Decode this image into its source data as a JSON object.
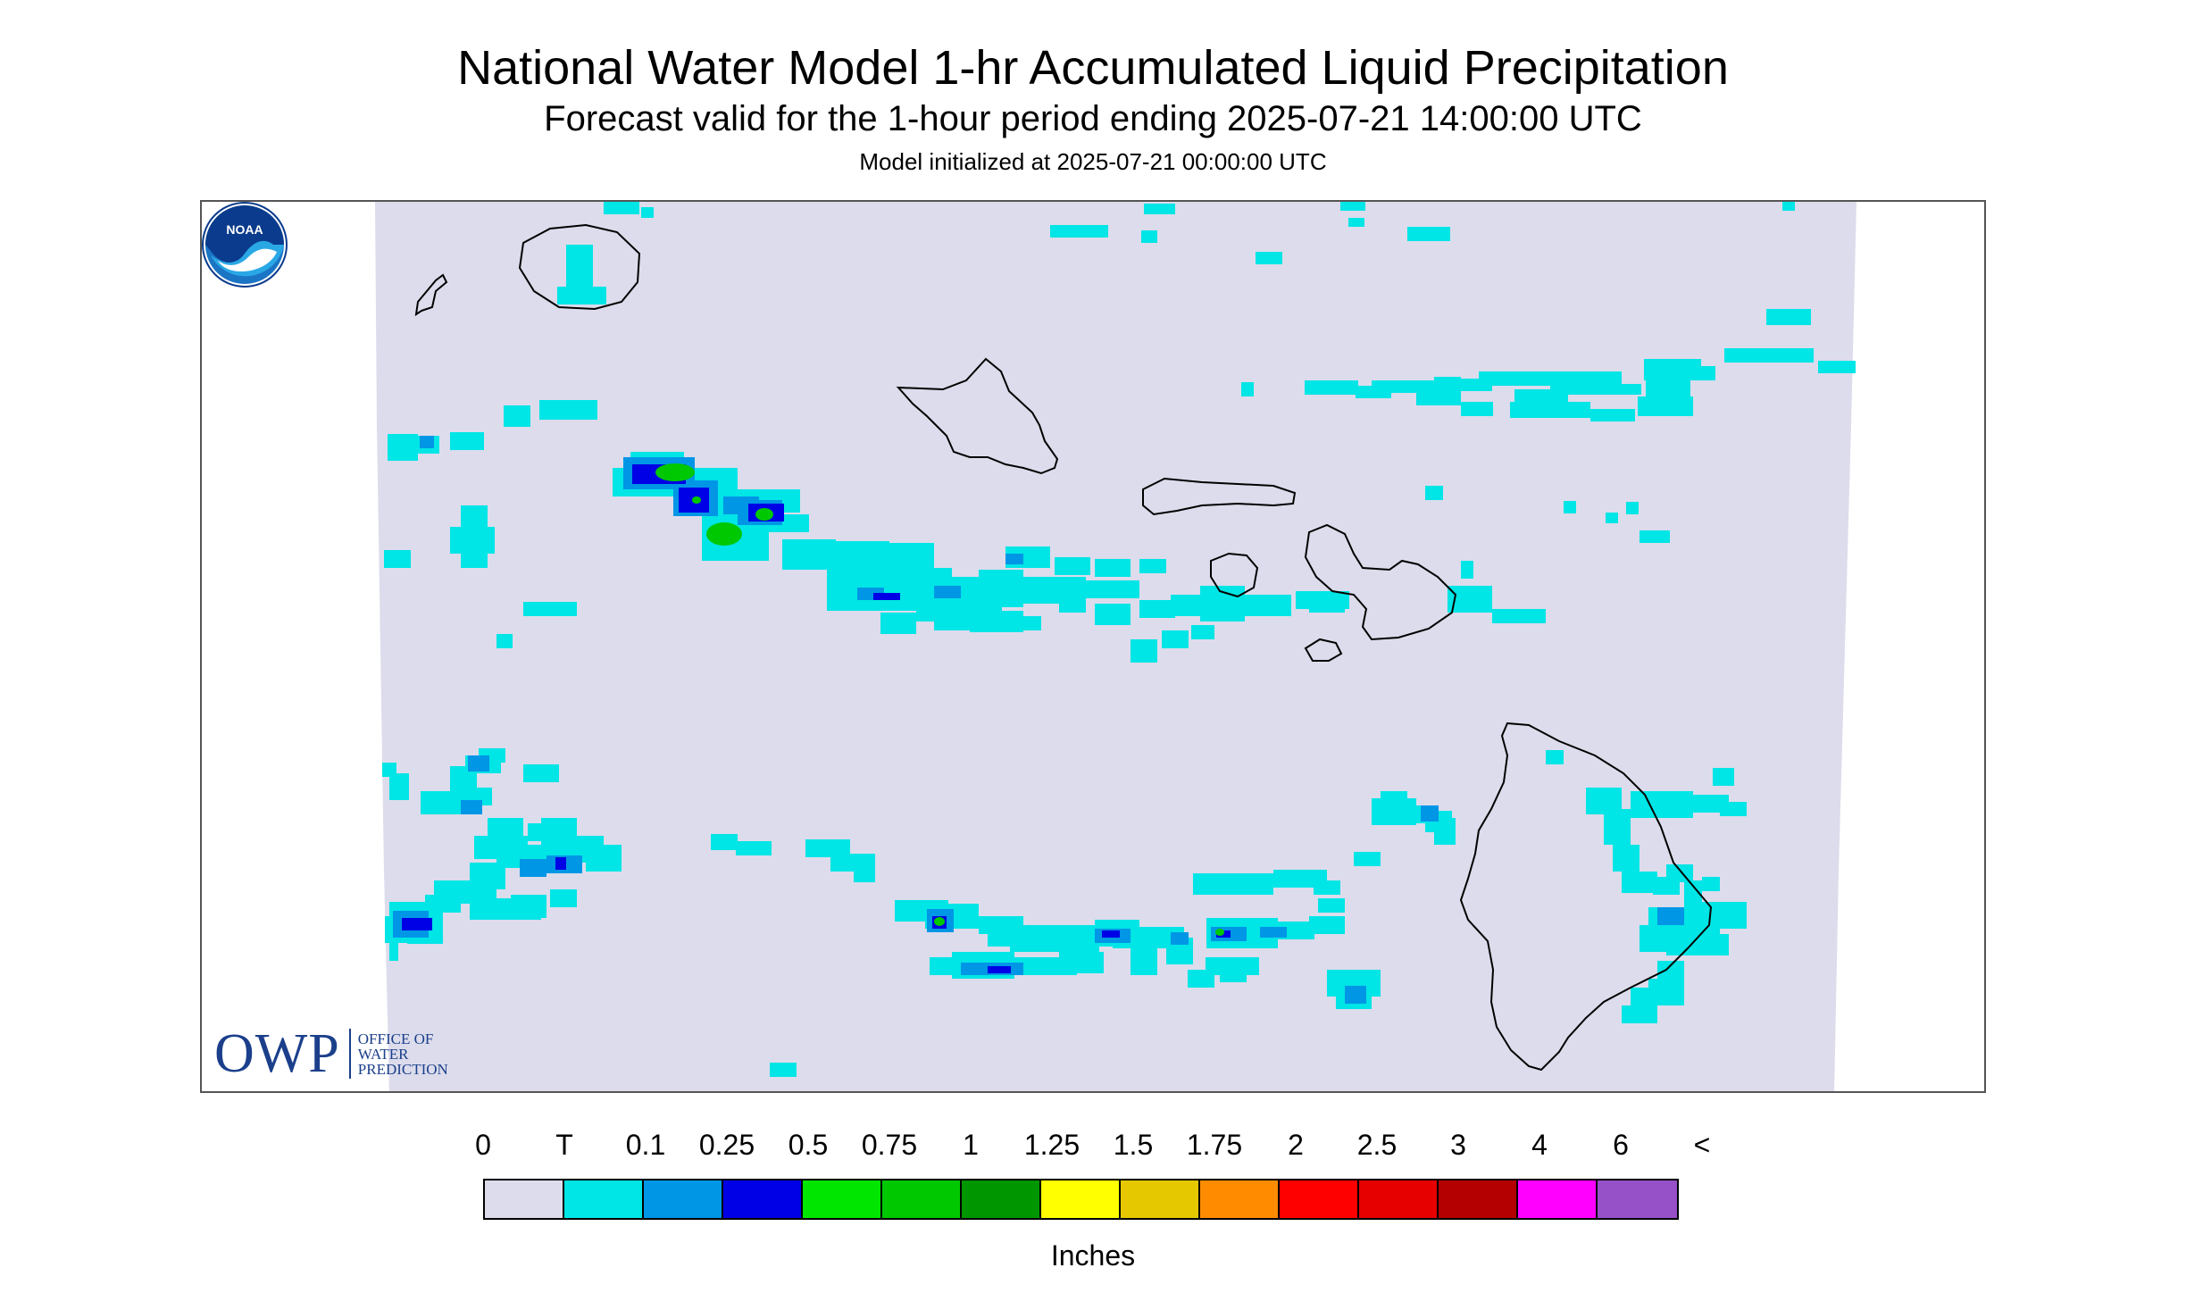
{
  "header": {
    "title": "National Water Model 1-hr Accumulated Liquid Precipitation",
    "subtitle": "Forecast valid for the 1-hour period ending 2025-07-21 14:00:00 UTC",
    "init": "Model initialized at 2025-07-21 00:00:00 UTC"
  },
  "logos": {
    "owp_big": "OWP",
    "owp_small": [
      "OFFICE OF",
      "WATER",
      "PREDICTION"
    ],
    "noaa_text": "NOAA"
  },
  "legend": {
    "labels": [
      "0",
      "T",
      "0.1",
      "0.25",
      "0.5",
      "0.75",
      "1",
      "1.25",
      "1.5",
      "1.75",
      "2",
      "2.5",
      "3",
      "4",
      "6",
      "<"
    ],
    "colors": [
      "#dcdcec",
      "#00e5e5",
      "#0096e6",
      "#0000e6",
      "#00e600",
      "#00c800",
      "#009600",
      "#ffff00",
      "#e6c800",
      "#ff8c00",
      "#ff0000",
      "#e60000",
      "#b40000",
      "#ff00ff",
      "#9650c8"
    ],
    "units": "Inches"
  },
  "map": {
    "background_color": "#dcdcec",
    "coast_color": "#000000"
  }
}
